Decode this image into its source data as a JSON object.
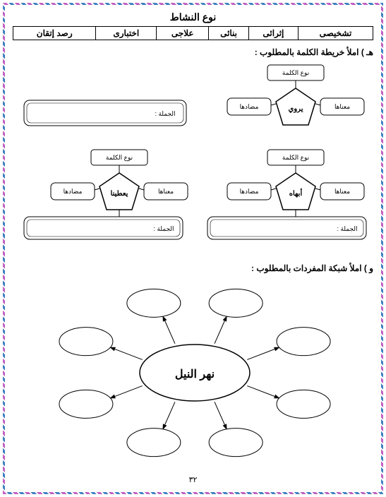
{
  "title": "نوع النشاط",
  "activity_types": [
    "تشخيصى",
    "إثرائى",
    "بنائى",
    "علاجى",
    "اختبارى",
    "رصد إتقان"
  ],
  "section1_title": "هـ ) املأ خريطة الكلمة بالمطلوب :",
  "section2_title": "و ) املأ شبكة المفردات بالمطلوب :",
  "page_number": "٣٢",
  "wordmap": {
    "labels": {
      "type": "نوع الكلمة",
      "meaning": "معناها",
      "antonym": "مضادها",
      "sentence": "الجملة :"
    },
    "words": [
      "يروي",
      "أبهاه",
      "يعطينا"
    ],
    "colors": {
      "stroke": "#000000",
      "fill_white": "#ffffff",
      "fill_light": "#f5f5f5"
    }
  },
  "webmap": {
    "center": "نهر النيل",
    "colors": {
      "stroke": "#000000",
      "fill": "#ffffff"
    }
  }
}
